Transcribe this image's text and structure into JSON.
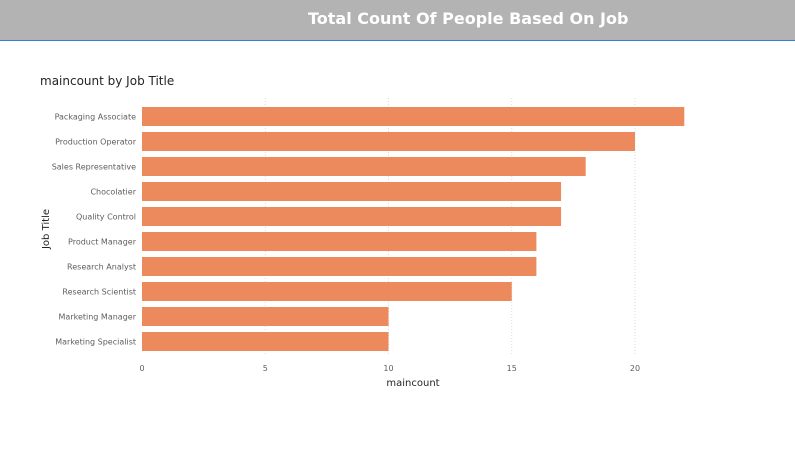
{
  "header": {
    "title": "Total Count Of People Based On Job"
  },
  "colors": {
    "header_bg": "#b3b3b3",
    "header_border": "#3a7bd5",
    "bar": "#ec8a5e",
    "grid": "#d9d9d9"
  },
  "chart_data": {
    "type": "bar",
    "orientation": "horizontal",
    "title": "maincount by Job Title",
    "xlabel": "maincount",
    "ylabel": "Job Title",
    "categories": [
      "Packaging Associate",
      "Production Operator",
      "Sales Representative",
      "Chocolatier",
      "Quality Control",
      "Product Manager",
      "Research Analyst",
      "Research Scientist",
      "Marketing Manager",
      "Marketing Specialist"
    ],
    "values": [
      22,
      20,
      18,
      17,
      17,
      16,
      16,
      15,
      10,
      10
    ],
    "xlim": [
      0,
      22
    ],
    "xticks": [
      0,
      5,
      10,
      15,
      20
    ],
    "grid": "vertical dotted",
    "legend": "none"
  }
}
